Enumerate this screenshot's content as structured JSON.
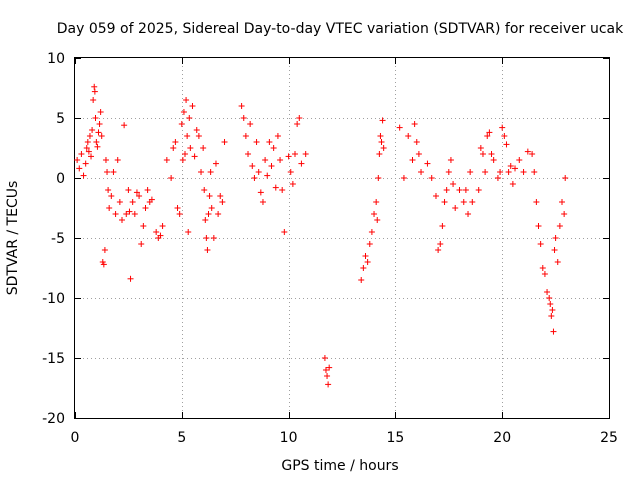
{
  "chart_data": {
    "type": "scatter",
    "title": "Day 059 of 2025, Sidereal Day-to-day VTEC variation (SDTVAR) for receiver ucak",
    "xlabel": "GPS time / hours",
    "ylabel": "SDTVAR / TECUs",
    "xlim": [
      0,
      25
    ],
    "ylim": [
      -20,
      10
    ],
    "xticks": [
      0,
      5,
      10,
      15,
      20,
      25
    ],
    "yticks": [
      -20,
      -15,
      -10,
      -5,
      0,
      5,
      10
    ],
    "xtick_labels": [
      "0",
      "5",
      "10",
      "15",
      "20",
      "25"
    ],
    "ytick_labels": [
      "-20",
      "-15",
      "-10",
      "-5",
      "0",
      "5",
      "10"
    ],
    "grid": true,
    "marker": "+",
    "series_color": "#ff0000",
    "series": [
      {
        "name": "SDTVAR",
        "x": [
          0.1,
          0.2,
          0.3,
          0.4,
          0.5,
          0.55,
          0.6,
          0.65,
          0.7,
          0.75,
          0.8,
          0.85,
          0.9,
          0.93,
          0.96,
          1.0,
          1.05,
          1.1,
          1.15,
          1.2,
          1.25,
          1.3,
          1.35,
          1.4,
          1.45,
          1.5,
          1.55,
          1.6,
          1.7,
          1.8,
          1.9,
          2.0,
          2.1,
          2.2,
          2.3,
          2.4,
          2.5,
          2.55,
          2.6,
          2.7,
          2.8,
          2.9,
          3.0,
          3.1,
          3.2,
          3.3,
          3.4,
          3.5,
          3.6,
          3.8,
          3.9,
          4.0,
          4.1,
          4.3,
          4.5,
          4.6,
          4.7,
          4.8,
          4.9,
          5.0,
          5.05,
          5.1,
          5.15,
          5.2,
          5.25,
          5.3,
          5.35,
          5.4,
          5.5,
          5.6,
          5.7,
          5.8,
          5.9,
          6.0,
          6.05,
          6.1,
          6.15,
          6.2,
          6.25,
          6.3,
          6.35,
          6.4,
          6.5,
          6.6,
          6.7,
          6.8,
          6.9,
          7.0,
          7.8,
          7.9,
          8.0,
          8.1,
          8.2,
          8.3,
          8.4,
          8.5,
          8.6,
          8.7,
          8.8,
          8.9,
          9.0,
          9.1,
          9.2,
          9.3,
          9.4,
          9.5,
          9.6,
          9.7,
          9.8,
          10.0,
          10.1,
          10.2,
          10.3,
          10.4,
          10.5,
          10.6,
          10.8,
          11.7,
          11.75,
          11.8,
          11.85,
          11.9,
          13.4,
          13.5,
          13.6,
          13.7,
          13.8,
          13.9,
          14.0,
          14.1,
          14.15,
          14.2,
          14.25,
          14.3,
          14.35,
          14.4,
          14.45,
          15.2,
          15.4,
          15.6,
          15.8,
          15.9,
          16.0,
          16.1,
          16.2,
          16.5,
          16.7,
          16.9,
          17.0,
          17.1,
          17.2,
          17.3,
          17.4,
          17.5,
          17.6,
          17.7,
          17.8,
          18.0,
          18.2,
          18.3,
          18.4,
          18.5,
          18.6,
          18.9,
          19.0,
          19.1,
          19.2,
          19.3,
          19.4,
          19.5,
          19.6,
          19.8,
          19.9,
          20.0,
          20.1,
          20.2,
          20.3,
          20.4,
          20.5,
          20.6,
          20.8,
          21.0,
          21.2,
          21.4,
          21.5,
          21.6,
          21.7,
          21.8,
          21.9,
          22.0,
          22.1,
          22.2,
          22.25,
          22.3,
          22.35,
          22.4,
          22.45,
          22.5,
          22.6,
          22.7,
          22.8,
          22.9,
          22.95
        ],
        "y": [
          1.5,
          0.8,
          2.0,
          0.2,
          1.2,
          2.5,
          3.0,
          2.2,
          3.5,
          1.8,
          4.0,
          6.5,
          7.6,
          7.2,
          5.0,
          3.0,
          2.6,
          3.8,
          4.5,
          5.5,
          3.5,
          -7.0,
          -7.2,
          -6.0,
          1.5,
          0.5,
          -1.0,
          -2.5,
          -1.5,
          0.5,
          -3.0,
          1.5,
          -2.0,
          -3.5,
          4.4,
          -3.0,
          -1.0,
          -2.8,
          -8.4,
          -2.0,
          -3.0,
          -1.2,
          -1.5,
          -5.5,
          -4.0,
          -2.5,
          -1.0,
          -2.0,
          -1.8,
          -4.5,
          -5.0,
          -4.8,
          -4.0,
          1.5,
          0.0,
          2.5,
          3.0,
          -2.5,
          -3.0,
          4.5,
          1.5,
          5.5,
          2.0,
          6.5,
          3.5,
          -4.5,
          5.0,
          2.5,
          6.0,
          1.8,
          4.0,
          3.5,
          0.5,
          2.5,
          -1.0,
          -3.5,
          -5.0,
          -6.0,
          -3.0,
          -1.5,
          0.5,
          -2.5,
          -5.0,
          1.2,
          -3.0,
          -1.5,
          -2.0,
          3.0,
          6.0,
          5.0,
          3.5,
          2.0,
          4.5,
          1.0,
          0.0,
          3.0,
          0.5,
          -1.2,
          -2.0,
          1.5,
          0.2,
          3.0,
          1.0,
          2.5,
          -0.8,
          3.5,
          1.5,
          -1.0,
          -4.5,
          1.8,
          0.5,
          -0.5,
          2.0,
          4.5,
          5.0,
          1.2,
          2.0,
          -15.0,
          -16.0,
          -16.5,
          -17.2,
          -15.8,
          -8.5,
          -7.5,
          -6.5,
          -7.0,
          -5.5,
          -4.5,
          -3.0,
          -2.0,
          -3.5,
          0.0,
          2.0,
          3.5,
          3.0,
          4.8,
          2.5,
          4.2,
          0.0,
          3.5,
          1.5,
          4.5,
          3.0,
          2.0,
          0.5,
          1.2,
          0.0,
          -1.5,
          -6.0,
          -5.5,
          -4.0,
          -2.0,
          -1.0,
          0.5,
          1.5,
          -0.5,
          -2.5,
          -1.0,
          -2.0,
          -1.0,
          -3.0,
          0.5,
          -2.0,
          -1.0,
          2.5,
          2.0,
          0.5,
          3.5,
          3.8,
          2.0,
          1.5,
          0.0,
          0.5,
          4.2,
          3.5,
          2.8,
          0.5,
          1.0,
          -0.5,
          0.8,
          1.5,
          0.5,
          2.2,
          2.0,
          0.5,
          -2.0,
          -4.0,
          -5.5,
          -7.5,
          -8.0,
          -9.5,
          -10.0,
          -10.5,
          -11.5,
          -11.0,
          -12.8,
          -6.0,
          -5.0,
          -7.0,
          -4.0,
          -2.0,
          -3.0,
          0.0
        ]
      }
    ]
  }
}
